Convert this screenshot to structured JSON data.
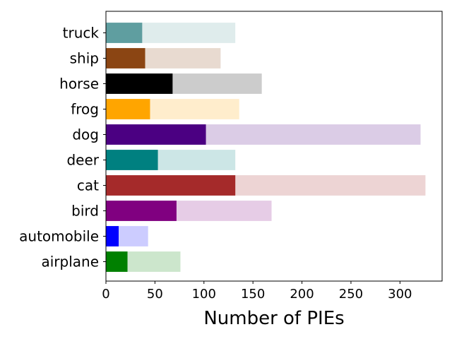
{
  "chart_data": {
    "type": "bar",
    "orientation": "horizontal",
    "stacked_overlay": true,
    "title": "",
    "xlabel": "Number of PIEs",
    "ylabel": "",
    "xlim": [
      0,
      343
    ],
    "xticks": [
      0,
      50,
      100,
      150,
      200,
      250,
      300
    ],
    "categories": [
      "airplane",
      "automobile",
      "bird",
      "cat",
      "deer",
      "dog",
      "frog",
      "horse",
      "ship",
      "truck"
    ],
    "series": [
      {
        "values": [
          76,
          43,
          169,
          326,
          132,
          321,
          136,
          159,
          117,
          132
        ]
      },
      {
        "values": [
          22,
          13,
          72,
          132,
          53,
          102,
          45,
          68,
          40,
          37
        ]
      }
    ],
    "colors": {
      "solid": [
        "#008000",
        "#0000ff",
        "#800080",
        "#a52a2a",
        "#008080",
        "#4b0082",
        "#ffa500",
        "#000000",
        "#8b4513",
        "#5f9ea0"
      ],
      "light": [
        "#cce6cc",
        "#ccccff",
        "#e6cce6",
        "#edd4d4",
        "#cce6e6",
        "#dbcce6",
        "#ffedcc",
        "#cccccc",
        "#e8dad0",
        "#dfecec"
      ]
    },
    "grid": false,
    "legend": "none"
  }
}
